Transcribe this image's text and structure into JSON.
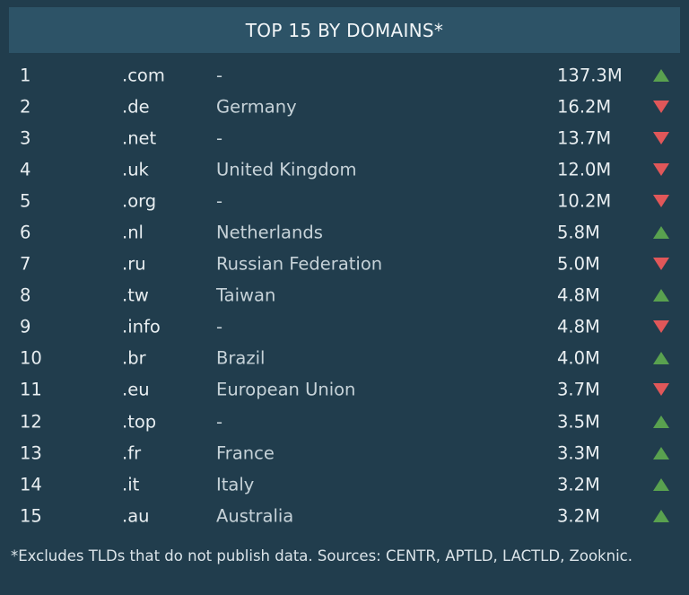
{
  "header": {
    "title": "TOP 15 BY DOMAINS*"
  },
  "colors": {
    "background": "#213d4d",
    "header_bg": "#2d5367",
    "trend_up": "#59a14f",
    "trend_down": "#e15759"
  },
  "chart_data": {
    "type": "table",
    "title": "TOP 15 BY DOMAINS*",
    "columns": [
      "rank",
      "tld",
      "country",
      "domains",
      "trend"
    ],
    "rows": [
      {
        "rank": "1",
        "tld": ".com",
        "country": "-",
        "domains": "137.3M",
        "trend": "up"
      },
      {
        "rank": "2",
        "tld": ".de",
        "country": "Germany",
        "domains": "16.2M",
        "trend": "down"
      },
      {
        "rank": "3",
        "tld": ".net",
        "country": "-",
        "domains": "13.7M",
        "trend": "down"
      },
      {
        "rank": "4",
        "tld": ".uk",
        "country": "United Kingdom",
        "domains": "12.0M",
        "trend": "down"
      },
      {
        "rank": "5",
        "tld": ".org",
        "country": "-",
        "domains": "10.2M",
        "trend": "down"
      },
      {
        "rank": "6",
        "tld": ".nl",
        "country": "Netherlands",
        "domains": "5.8M",
        "trend": "up"
      },
      {
        "rank": "7",
        "tld": ".ru",
        "country": "Russian Federation",
        "domains": "5.0M",
        "trend": "down"
      },
      {
        "rank": "8",
        "tld": ".tw",
        "country": "Taiwan",
        "domains": "4.8M",
        "trend": "up"
      },
      {
        "rank": "9",
        "tld": ".info",
        "country": "-",
        "domains": "4.8M",
        "trend": "down"
      },
      {
        "rank": "10",
        "tld": ".br",
        "country": "Brazil",
        "domains": "4.0M",
        "trend": "up"
      },
      {
        "rank": "11",
        "tld": ".eu",
        "country": "European Union",
        "domains": "3.7M",
        "trend": "down"
      },
      {
        "rank": "12",
        "tld": ".top",
        "country": "-",
        "domains": "3.5M",
        "trend": "up"
      },
      {
        "rank": "13",
        "tld": ".fr",
        "country": "France",
        "domains": "3.3M",
        "trend": "up"
      },
      {
        "rank": "14",
        "tld": ".it",
        "country": "Italy",
        "domains": "3.2M",
        "trend": "up"
      },
      {
        "rank": "15",
        "tld": ".au",
        "country": "Australia",
        "domains": "3.2M",
        "trend": "up"
      }
    ]
  },
  "footnote": "*Excludes TLDs that do not publish data. Sources: CENTR, APTLD, LACTLD, Zooknic."
}
